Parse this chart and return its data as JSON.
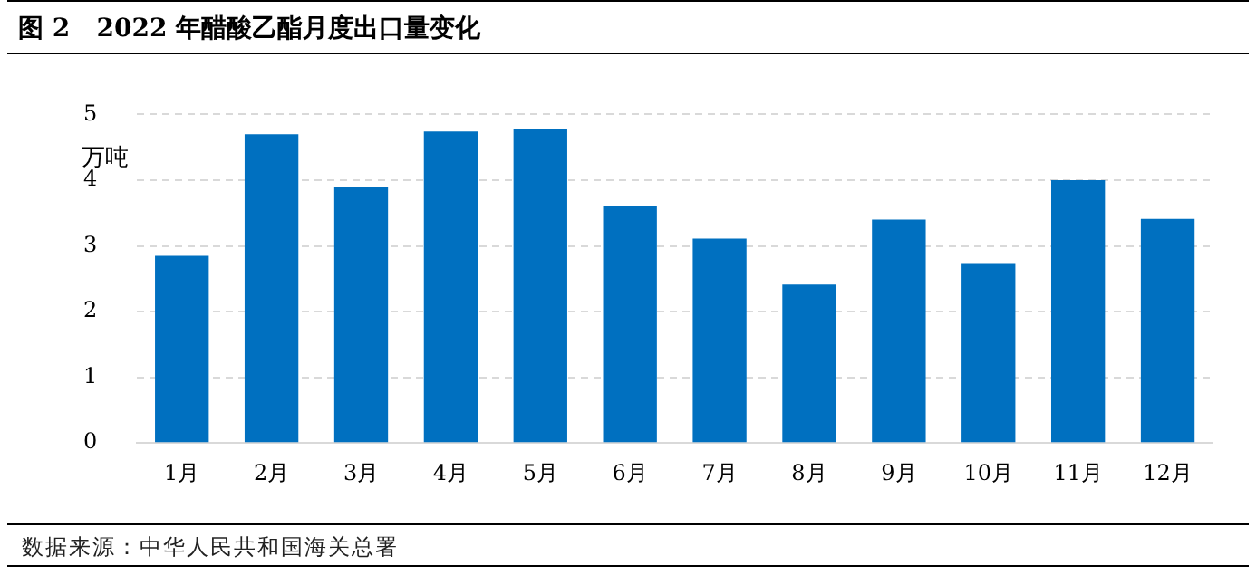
{
  "chart_data": {
    "type": "bar",
    "title": "图 2   2022 年醋酸乙酯月度出口量变化",
    "ylabel": "万吨",
    "categories": [
      "1月",
      "2月",
      "3月",
      "4月",
      "5月",
      "6月",
      "7月",
      "8月",
      "9月",
      "10月",
      "11月",
      "12月"
    ],
    "values": [
      2.85,
      4.7,
      3.9,
      4.74,
      4.77,
      3.61,
      3.11,
      2.41,
      3.4,
      2.74,
      4.0,
      3.41
    ],
    "color": "#0070c0",
    "ylim": [
      0,
      5
    ],
    "yticks": [
      0,
      1,
      2,
      3,
      4,
      5
    ],
    "grid": "y",
    "legend": false,
    "annotations": [
      "数据来源：中华人民共和国海关总署"
    ]
  }
}
